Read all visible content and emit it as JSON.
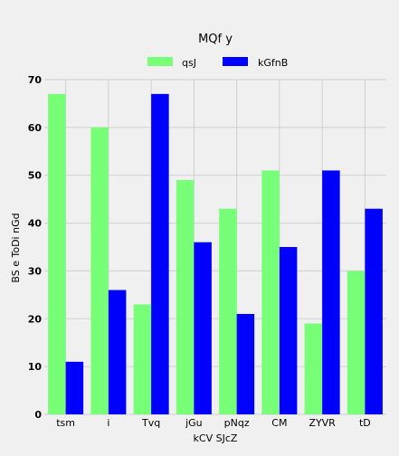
{
  "chart_data": {
    "type": "bar",
    "title": "MQf y",
    "xlabel": "kCV SJcZ",
    "ylabel": "BS e ToDi nGd",
    "categories": [
      "tsm",
      "i",
      "Tvq",
      "jGu",
      "pNqz",
      "CM",
      "ZYVR",
      "tD"
    ],
    "series": [
      {
        "name": "qsJ",
        "color": "#77ff77",
        "values": [
          67,
          60,
          23,
          49,
          43,
          51,
          19,
          30
        ]
      },
      {
        "name": "kGfnB",
        "color": "#0000ff",
        "values": [
          11,
          26,
          67,
          36,
          21,
          35,
          51,
          43
        ]
      }
    ],
    "ylim": [
      0,
      70
    ],
    "yticks": [
      0,
      10,
      20,
      30,
      40,
      50,
      60,
      70
    ],
    "grid": true,
    "legend_position": "top-center"
  }
}
